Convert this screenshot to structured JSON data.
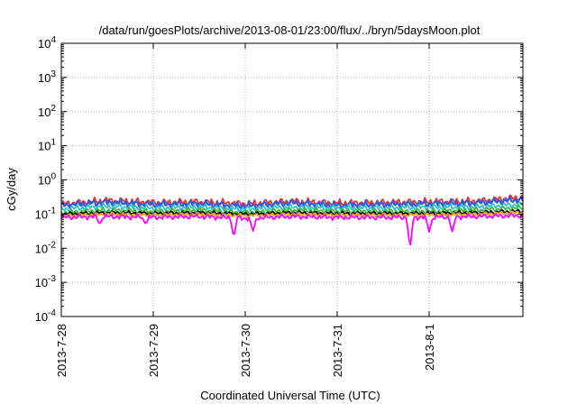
{
  "chart_data": {
    "type": "line",
    "title": "/data/run/goesPlots/archive/2013-08-01/23:00/flux/../bryn/5daysMoon.plot",
    "xlabel": "Coordinated Universal Time (UTC)",
    "ylabel": "cGy/day",
    "yscale": "log",
    "ylim": [
      0.0001,
      10000
    ],
    "y_ticks": [
      {
        "base": "10",
        "exp": "-4",
        "value": 0.0001
      },
      {
        "base": "10",
        "exp": "-3",
        "value": 0.001
      },
      {
        "base": "10",
        "exp": "-2",
        "value": 0.01
      },
      {
        "base": "10",
        "exp": "-1",
        "value": 0.1
      },
      {
        "base": "10",
        "exp": "0",
        "value": 1
      },
      {
        "base": "10",
        "exp": "1",
        "value": 10
      },
      {
        "base": "10",
        "exp": "2",
        "value": 100
      },
      {
        "base": "10",
        "exp": "3",
        "value": 1000
      },
      {
        "base": "10",
        "exp": "4",
        "value": 10000
      }
    ],
    "x_range": [
      "2013-07-28",
      "2013-08-01T23:00"
    ],
    "x_ticks": [
      {
        "label": "2013-7-28",
        "date": "2013-07-28"
      },
      {
        "label": "2013-7-29",
        "date": "2013-07-29"
      },
      {
        "label": "2013-7-30",
        "date": "2013-07-30"
      },
      {
        "label": "2013-7-31",
        "date": "2013-07-31"
      },
      {
        "label": "2013-8-1",
        "date": "2013-08-01"
      }
    ],
    "grid": true,
    "legend": "none",
    "series": [
      {
        "color": "#e8302a",
        "baseline": 0.22,
        "spread": 0.06,
        "dips": [],
        "daily_points": [
          [
            "2013-07-28",
            0.2
          ],
          [
            "2013-07-28T12:00",
            0.25
          ],
          [
            "2013-07-29",
            0.22
          ],
          [
            "2013-07-29T12:00",
            0.23
          ],
          [
            "2013-07-30",
            0.2
          ],
          [
            "2013-07-30T12:00",
            0.24
          ],
          [
            "2013-07-31",
            0.21
          ],
          [
            "2013-07-31T12:00",
            0.22
          ],
          [
            "2013-08-01",
            0.23
          ],
          [
            "2013-08-01T12:00",
            0.24
          ],
          [
            "2013-08-01T23:00",
            0.3
          ]
        ]
      },
      {
        "color": "#2e5ae0",
        "baseline": 0.19,
        "spread": 0.05,
        "dips": [],
        "daily_points": [
          [
            "2013-07-28",
            0.18
          ],
          [
            "2013-07-28T12:00",
            0.22
          ],
          [
            "2013-07-29",
            0.19
          ],
          [
            "2013-07-29T12:00",
            0.2
          ],
          [
            "2013-07-30",
            0.17
          ],
          [
            "2013-07-30T12:00",
            0.21
          ],
          [
            "2013-07-31",
            0.18
          ],
          [
            "2013-07-31T12:00",
            0.19
          ],
          [
            "2013-08-01",
            0.2
          ],
          [
            "2013-08-01T12:00",
            0.21
          ],
          [
            "2013-08-01T23:00",
            0.26
          ]
        ]
      },
      {
        "color": "#2fc4c4",
        "baseline": 0.15,
        "spread": 0.035,
        "dips": [],
        "daily_points": [
          [
            "2013-07-28",
            0.14
          ],
          [
            "2013-07-28T12:00",
            0.17
          ],
          [
            "2013-07-29",
            0.15
          ],
          [
            "2013-07-29T12:00",
            0.16
          ],
          [
            "2013-07-30",
            0.14
          ],
          [
            "2013-07-30T12:00",
            0.16
          ],
          [
            "2013-07-31",
            0.15
          ],
          [
            "2013-07-31T12:00",
            0.15
          ],
          [
            "2013-08-01",
            0.16
          ],
          [
            "2013-08-01T12:00",
            0.16
          ],
          [
            "2013-08-01T23:00",
            0.19
          ]
        ]
      },
      {
        "color": "#3cb83c",
        "baseline": 0.12,
        "spread": 0.025,
        "dips": [],
        "daily_points": [
          [
            "2013-07-28",
            0.11
          ],
          [
            "2013-07-28T12:00",
            0.13
          ],
          [
            "2013-07-29",
            0.12
          ],
          [
            "2013-07-29T12:00",
            0.13
          ],
          [
            "2013-07-30",
            0.11
          ],
          [
            "2013-07-30T12:00",
            0.13
          ],
          [
            "2013-07-31",
            0.12
          ],
          [
            "2013-07-31T12:00",
            0.12
          ],
          [
            "2013-08-01",
            0.12
          ],
          [
            "2013-08-01T12:00",
            0.13
          ],
          [
            "2013-08-01T23:00",
            0.15
          ]
        ]
      },
      {
        "color": "#000000",
        "baseline": 0.105,
        "spread": 0.015,
        "dips": [],
        "daily_points": [
          [
            "2013-07-28",
            0.1
          ],
          [
            "2013-07-28T12:00",
            0.11
          ],
          [
            "2013-07-29",
            0.105
          ],
          [
            "2013-07-29T12:00",
            0.11
          ],
          [
            "2013-07-30",
            0.1
          ],
          [
            "2013-07-30T12:00",
            0.11
          ],
          [
            "2013-07-31",
            0.105
          ],
          [
            "2013-07-31T12:00",
            0.105
          ],
          [
            "2013-08-01",
            0.105
          ],
          [
            "2013-08-01T12:00",
            0.11
          ],
          [
            "2013-08-01T23:00",
            0.12
          ]
        ]
      },
      {
        "color": "#f0a020",
        "baseline": 0.095,
        "spread": 0.012,
        "dips": [],
        "daily_points": [
          [
            "2013-07-28",
            0.09
          ],
          [
            "2013-07-28T12:00",
            0.1
          ],
          [
            "2013-07-29",
            0.095
          ],
          [
            "2013-07-29T12:00",
            0.1
          ],
          [
            "2013-07-30",
            0.09
          ],
          [
            "2013-07-30T12:00",
            0.1
          ],
          [
            "2013-07-31",
            0.095
          ],
          [
            "2013-07-31T12:00",
            0.095
          ],
          [
            "2013-08-01",
            0.095
          ],
          [
            "2013-08-01T12:00",
            0.1
          ],
          [
            "2013-08-01T23:00",
            0.11
          ]
        ]
      },
      {
        "color": "#ff00ff",
        "baseline": 0.08,
        "spread": 0.015,
        "dips": [
          [
            "2013-07-28T10:00",
            0.05
          ],
          [
            "2013-07-28T22:00",
            0.05
          ],
          [
            "2013-07-29T21:00",
            0.02
          ],
          [
            "2013-07-30T02:00",
            0.03
          ],
          [
            "2013-07-31T19:00",
            0.01
          ],
          [
            "2013-08-01T00:00",
            0.03
          ],
          [
            "2013-08-01T06:00",
            0.03
          ]
        ],
        "daily_points": [
          [
            "2013-07-28",
            0.08
          ],
          [
            "2013-07-28T12:00",
            0.085
          ],
          [
            "2013-07-29",
            0.08
          ],
          [
            "2013-07-29T12:00",
            0.085
          ],
          [
            "2013-07-30",
            0.075
          ],
          [
            "2013-07-30T12:00",
            0.085
          ],
          [
            "2013-07-31",
            0.08
          ],
          [
            "2013-07-31T12:00",
            0.08
          ],
          [
            "2013-08-01",
            0.08
          ],
          [
            "2013-08-01T12:00",
            0.085
          ],
          [
            "2013-08-01T23:00",
            0.09
          ]
        ]
      }
    ]
  }
}
